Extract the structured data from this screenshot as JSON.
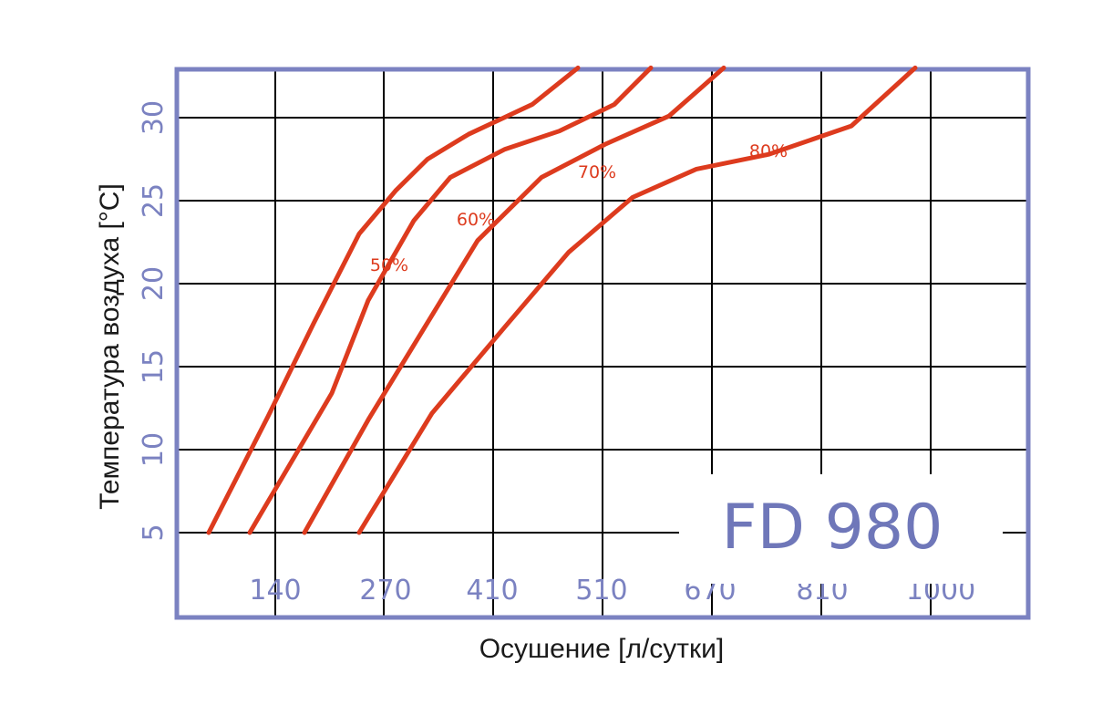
{
  "chart_data": {
    "type": "line",
    "title": "FD 980",
    "xlabel": "Осушение [л/сутки]",
    "ylabel": "Температура воздуха [°C]",
    "x_tick_labels": [
      "140",
      "270",
      "410",
      "510",
      "670",
      "810",
      "1000"
    ],
    "y_ticks": [
      5,
      10,
      15,
      20,
      25,
      30
    ],
    "ylim": [
      5,
      33
    ],
    "grid": true,
    "colors": {
      "frame": "#7b82c1",
      "grid": "#000000",
      "series": "#dd3b1e",
      "ticks": "#7b82c1",
      "title": "#6f77b9"
    },
    "series": [
      {
        "name": "50%",
        "points": [
          [
            35,
            5
          ],
          [
            100,
            12
          ],
          [
            150,
            17.6
          ],
          [
            200,
            23
          ],
          [
            240,
            25.6
          ],
          [
            275,
            27.5
          ],
          [
            320,
            29
          ],
          [
            390,
            30.8
          ],
          [
            440,
            33
          ]
        ]
      },
      {
        "name": "60%",
        "points": [
          [
            80,
            5
          ],
          [
            170,
            13.4
          ],
          [
            210,
            19
          ],
          [
            260,
            23.8
          ],
          [
            300,
            26.4
          ],
          [
            360,
            28.1
          ],
          [
            420,
            29.2
          ],
          [
            480,
            30.8
          ],
          [
            520,
            33
          ]
        ]
      },
      {
        "name": "70%",
        "points": [
          [
            140,
            5
          ],
          [
            210,
            11.8
          ],
          [
            270,
            17.2
          ],
          [
            330,
            22.6
          ],
          [
            400,
            26.4
          ],
          [
            470,
            28.4
          ],
          [
            540,
            30.1
          ],
          [
            600,
            33
          ]
        ]
      },
      {
        "name": "80%",
        "points": [
          [
            200,
            5
          ],
          [
            280,
            12.2
          ],
          [
            360,
            17.4
          ],
          [
            430,
            21.9
          ],
          [
            500,
            25.2
          ],
          [
            570,
            26.9
          ],
          [
            650,
            27.8
          ],
          [
            740,
            29.5
          ],
          [
            810,
            33
          ]
        ]
      }
    ]
  }
}
